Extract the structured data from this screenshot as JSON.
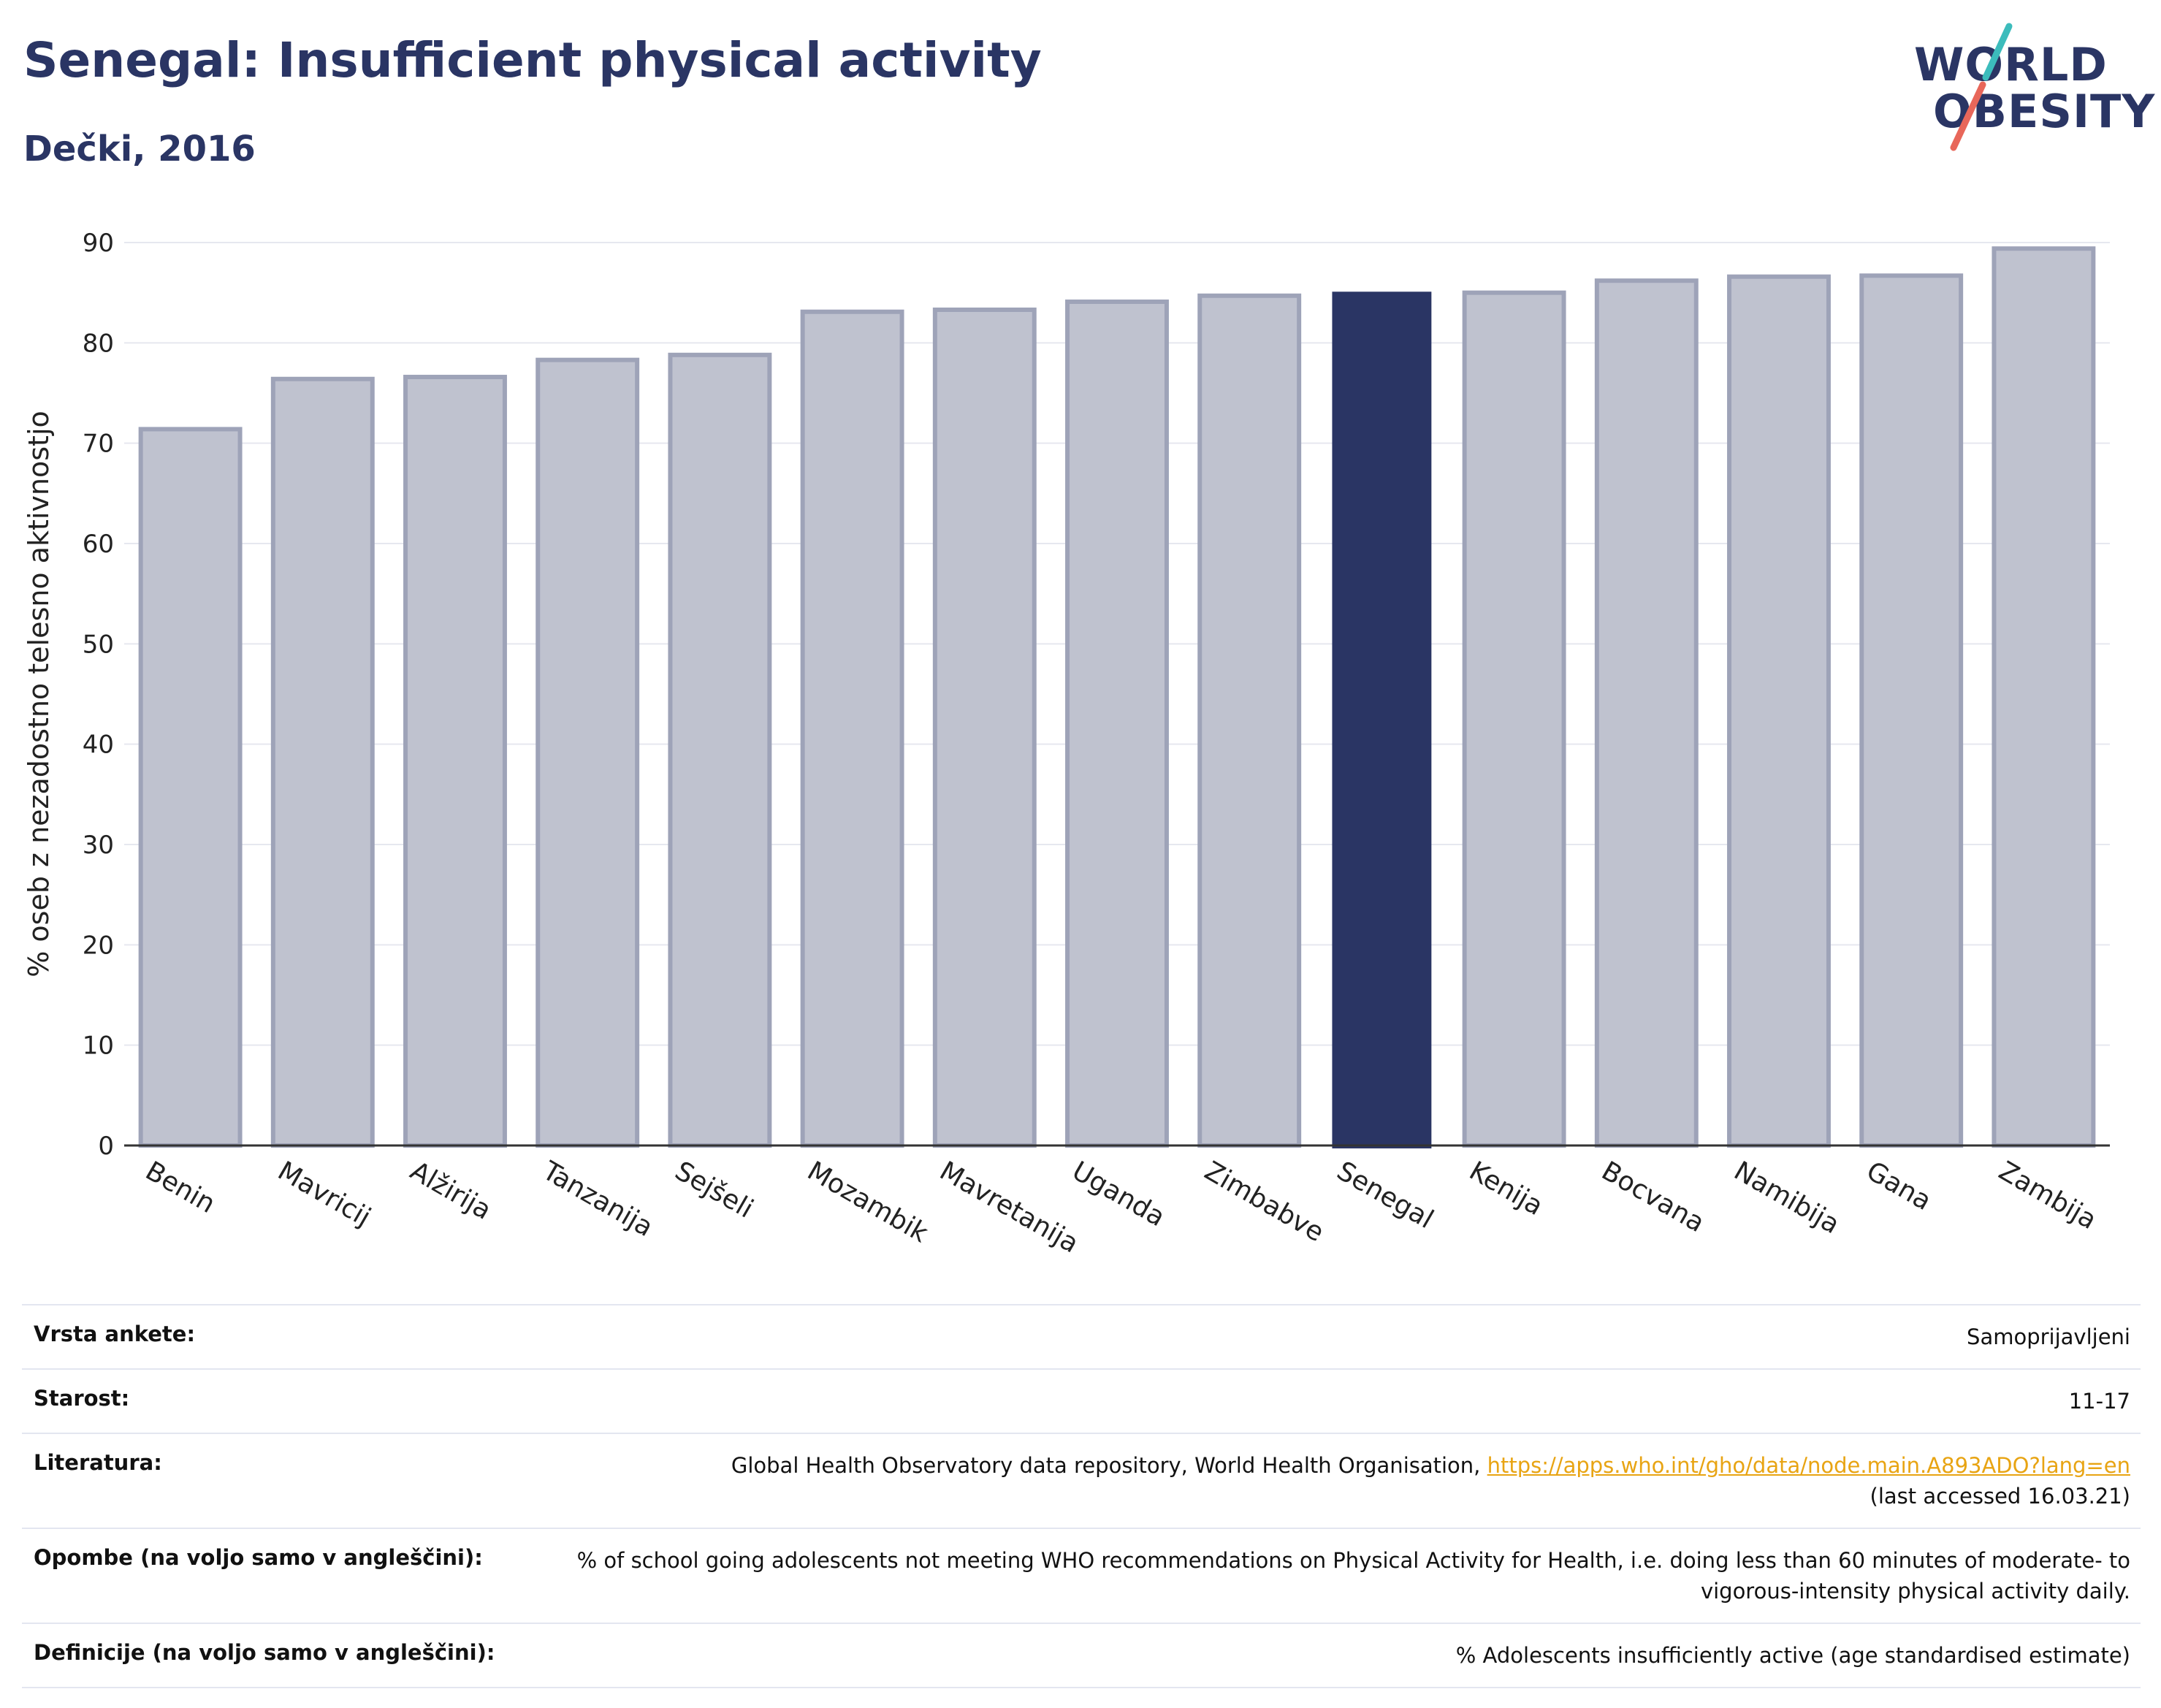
{
  "header": {
    "title": "Senegal: Insufficient physical activity",
    "subtitle": "Dečki, 2016"
  },
  "logo": {
    "line1": "WORLD",
    "line2": "OBESITY",
    "colors": {
      "text": "#2a3564",
      "slash_top": "#3cbcbc",
      "slash_bottom": "#e8675a"
    }
  },
  "chart_data": {
    "type": "bar",
    "title": "",
    "xlabel": "",
    "ylabel": "% oseb z nezadostno telesno aktivnostjo",
    "ylim": [
      0,
      90
    ],
    "yticks": [
      0,
      10,
      20,
      30,
      40,
      50,
      60,
      70,
      80,
      90
    ],
    "grid": true,
    "highlight": "Senegal",
    "colors": {
      "bar": "#bfc2cf",
      "bar_edge": "#9ea3b8",
      "highlight": "#2a3564",
      "grid": "#e6e8ef"
    },
    "categories": [
      "Benin",
      "Mavricij",
      "Alžirija",
      "Tanzanija",
      "Sejšeli",
      "Mozambik",
      "Mavretanija",
      "Uganda",
      "Zimbabve",
      "Senegal",
      "Kenija",
      "Bocvana",
      "Namibija",
      "Gana",
      "Zambija"
    ],
    "values": [
      71.4,
      76.4,
      76.6,
      78.3,
      78.8,
      83.1,
      83.3,
      84.1,
      84.7,
      85.1,
      85.0,
      86.2,
      86.6,
      86.7,
      89.4
    ]
  },
  "info": {
    "rows": [
      {
        "label": "Vrsta ankete:",
        "value": "Samoprijavljeni"
      },
      {
        "label": "Starost:",
        "value": "11-17"
      },
      {
        "label": "Literatura:",
        "value": "Global Health Observatory data repository, World Health Organisation, ",
        "link": "https://apps.who.int/gho/data/node.main.A893ADO?lang=en",
        "value_after": "(last accessed 16.03.21)"
      },
      {
        "label": "Opombe (na voljo samo v angleščini):",
        "value": "% of school going adolescents not meeting WHO recommendations on Physical Activity for Health, i.e. doing less than 60 minutes of moderate- to vigorous-intensity physical activity daily."
      },
      {
        "label": "Definicije (na voljo samo v angleščini):",
        "value": "% Adolescents insufficiently active (age standardised estimate)"
      }
    ]
  }
}
